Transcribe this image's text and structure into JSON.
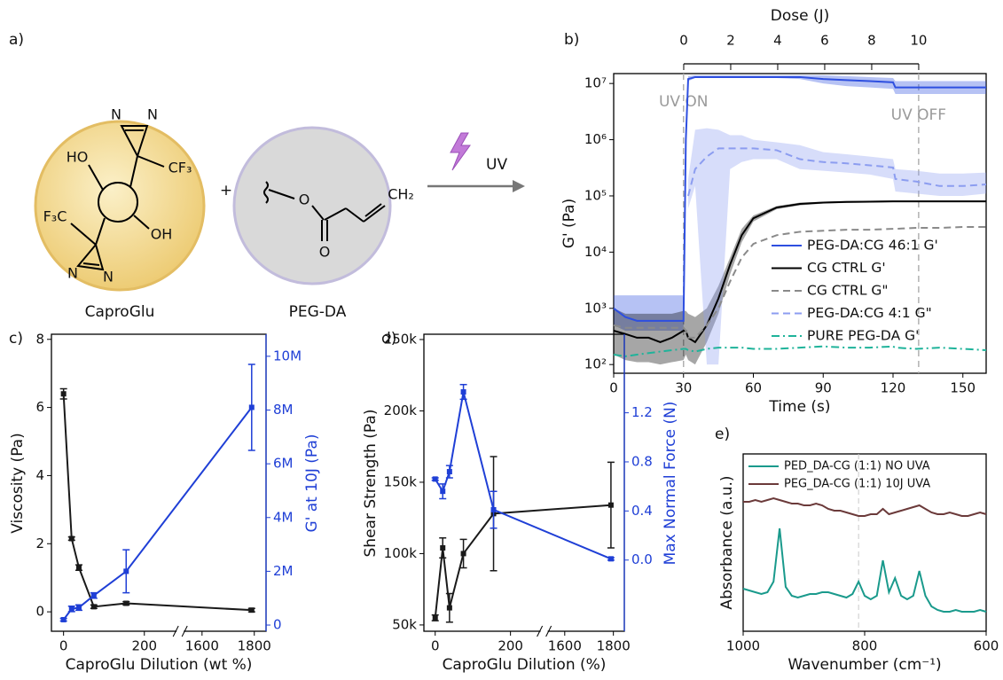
{
  "panel_a": {
    "label": "a)",
    "plus": "+",
    "uv": "UV",
    "compounds": [
      "CaproGlu",
      "PEG-DA"
    ],
    "atoms": [
      "HO",
      "OH",
      "CF₃",
      "F₃C",
      "N",
      "N",
      "N",
      "N",
      "O",
      "O",
      "CH₂"
    ]
  },
  "chart_data": [
    {
      "type": "line",
      "label": "b)",
      "xlabel": "Time (s)",
      "ylabel": "G' (Pa)",
      "x2label": "Dose (J)",
      "xlim": [
        0,
        160
      ],
      "xticks": [
        0,
        30,
        60,
        90,
        120,
        150
      ],
      "x2lim": [
        -2.98,
        12.87
      ],
      "x2ticks": [
        0,
        2,
        4,
        6,
        8,
        10
      ],
      "yscale": "log",
      "ylim": [
        70,
        15000000
      ],
      "yticks": [
        {
          "value": 100,
          "label": "10²"
        },
        {
          "value": 1000,
          "label": "10³"
        },
        {
          "value": 10000,
          "label": "10⁴"
        },
        {
          "value": 100000,
          "label": "10⁵"
        },
        {
          "value": 1000000,
          "label": "10⁶"
        },
        {
          "value": 10000000,
          "label": "10⁷"
        }
      ],
      "legend": "lower right",
      "annotations": [
        {
          "text": "UV ON",
          "x": 30
        },
        {
          "text": "UV OFF",
          "x": 131
        }
      ],
      "x": [
        0,
        5,
        10,
        15,
        20,
        25,
        30,
        31,
        32,
        35,
        40,
        45,
        50,
        55,
        60,
        70,
        80,
        90,
        100,
        110,
        120,
        121,
        130,
        140,
        150,
        160
      ],
      "series": [
        {
          "name": "PEG-DA:CG 46:1 G'",
          "color": "#2e4fe0",
          "style": "solid",
          "values": [
            1000,
            700,
            600,
            600,
            600,
            600,
            600,
            1000000,
            12000000,
            13000000,
            13000000,
            13000000,
            13000000,
            13000000,
            13000000,
            13000000,
            13000000,
            12000000,
            11500000,
            11000000,
            10500000,
            8500000,
            8500000,
            8500000,
            8500000,
            8500000
          ],
          "band_low": [
            500,
            400,
            400,
            400,
            400,
            400,
            400,
            600000,
            11000000,
            12500000,
            12500000,
            12500000,
            12500000,
            12500000,
            12500000,
            12500000,
            12000000,
            10000000,
            9000000,
            8500000,
            8000000,
            6500000,
            6500000,
            6500000,
            6500000,
            6500000
          ],
          "band_high": [
            1700,
            1700,
            1700,
            1700,
            1700,
            1700,
            1700,
            1500000,
            13500000,
            14000000,
            14000000,
            14000000,
            14000000,
            14000000,
            14000000,
            14000000,
            14000000,
            14000000,
            13500000,
            13000000,
            12500000,
            11000000,
            11000000,
            11000000,
            11000000,
            11000000
          ]
        },
        {
          "name": "CG CTRL G'",
          "color": "#000000",
          "style": "solid",
          "values": [
            400,
            350,
            300,
            300,
            250,
            300,
            400,
            400,
            300,
            250,
            500,
            1500,
            6000,
            20000,
            40000,
            62000,
            72000,
            76000,
            78000,
            79000,
            80000,
            80000,
            80000,
            80000,
            80000,
            80000
          ],
          "band_low": [
            150,
            120,
            110,
            110,
            100,
            110,
            120,
            150,
            120,
            100,
            250,
            800,
            4000,
            15000,
            35000,
            58000,
            68000,
            73000,
            75000,
            76000,
            77000,
            77000,
            77000,
            77000,
            77000,
            77000
          ],
          "band_high": [
            1000,
            800,
            800,
            800,
            800,
            800,
            900,
            900,
            800,
            700,
            1000,
            2500,
            8000,
            26000,
            45000,
            66000,
            76000,
            79000,
            81000,
            82000,
            83000,
            83000,
            83000,
            83000,
            83000,
            83000
          ]
        },
        {
          "name": "CG CTRL G\"",
          "color": "#8a8a8a",
          "style": "dash",
          "values": [
            500,
            450,
            450,
            450,
            450,
            450,
            450,
            400,
            300,
            300,
            500,
            1000,
            3000,
            8000,
            14000,
            20000,
            23000,
            24000,
            25000,
            25000,
            26000,
            26000,
            27000,
            27000,
            28000,
            28000
          ]
        },
        {
          "name": "PEG-DA:CG 4:1 G\"",
          "color": "#8c9df0",
          "style": "dash",
          "values": [
            null,
            null,
            null,
            null,
            null,
            null,
            null,
            null,
            100000,
            300000,
            500000,
            700000,
            700000,
            700000,
            700000,
            650000,
            450000,
            400000,
            380000,
            350000,
            320000,
            200000,
            180000,
            150000,
            150000,
            160000
          ],
          "band_low": [
            null,
            null,
            null,
            null,
            null,
            null,
            null,
            null,
            60000,
            150000,
            100,
            100,
            300000,
            400000,
            450000,
            450000,
            300000,
            280000,
            260000,
            240000,
            200000,
            120000,
            110000,
            100000,
            100000,
            110000
          ],
          "band_high": [
            null,
            null,
            null,
            null,
            null,
            null,
            null,
            null,
            200000,
            1500000,
            1600000,
            1500000,
            1200000,
            1200000,
            1000000,
            900000,
            800000,
            600000,
            550000,
            500000,
            450000,
            300000,
            280000,
            250000,
            250000,
            260000
          ]
        },
        {
          "name": "PURE PEG-DA G'",
          "color": "#1fb39a",
          "style": "dashdot",
          "values": [
            150,
            140,
            150,
            160,
            170,
            180,
            190,
            190,
            180,
            170,
            190,
            200,
            200,
            200,
            190,
            190,
            200,
            210,
            200,
            200,
            210,
            200,
            190,
            200,
            190,
            180
          ]
        }
      ]
    },
    {
      "type": "line",
      "label": "c)",
      "xlabel": "CaproGlu Dilution (wt %)",
      "ylabel": "Viscosity (Pa)",
      "y2label": "G' at 10J (Pa)",
      "xlim": [
        -30,
        1845
      ],
      "xbreak": [
        280,
        1530
      ],
      "xticks": [
        0,
        200,
        1600,
        1800
      ],
      "ylim": [
        -0.57,
        8.15
      ],
      "yticks": [
        0,
        2,
        4,
        6,
        8
      ],
      "y2lim": [
        -230000,
        10820000
      ],
      "y2ticks": [
        0,
        {
          "value": 2000000,
          "label": "2M"
        },
        {
          "value": 4000000,
          "label": "4M"
        },
        {
          "value": 6000000,
          "label": "6M"
        },
        {
          "value": 8000000,
          "label": "8M"
        },
        {
          "value": 10000000,
          "label": "10M"
        }
      ],
      "x": [
        0,
        20,
        38,
        75,
        155,
        1790
      ],
      "series": [
        {
          "color": "#1a1a1a",
          "style": "solid",
          "marker": "square",
          "values": [
            6.4,
            2.15,
            1.3,
            0.15,
            0.25,
            0.05
          ],
          "errors": [
            0.15,
            0.05,
            0.08,
            0.05,
            0.05,
            0.05
          ]
        },
        {
          "color": "#1f3fd6",
          "style": "solid",
          "marker": "square",
          "axis": "y2",
          "values": [
            200000,
            600000,
            650000,
            1100000,
            2000000,
            8100000
          ],
          "errors": [
            50000,
            100000,
            100000,
            100000,
            800000,
            1600000
          ]
        }
      ]
    },
    {
      "type": "line",
      "label": "d)",
      "xlabel": "CaproGlu Dilution (%)",
      "ylabel": "Shear Strength (Pa)",
      "y2label": "Max Normal Force (N)",
      "xlim": [
        -30,
        1845
      ],
      "xbreak": [
        280,
        1530
      ],
      "xticks": [
        0,
        200,
        1600,
        1800
      ],
      "ylim": [
        45600,
        253700
      ],
      "yticks": [
        {
          "value": 50000,
          "label": "50k"
        },
        {
          "value": 100000,
          "label": "100k"
        },
        {
          "value": 150000,
          "label": "150k"
        },
        {
          "value": 200000,
          "label": "200k"
        },
        {
          "value": 250000,
          "label": "250k"
        }
      ],
      "y2lim": [
        -0.58,
        1.84
      ],
      "y2ticks": [
        {
          "value": 0,
          "label": "0.0"
        },
        0.4,
        0.8,
        1.2
      ],
      "x": [
        0,
        20,
        38,
        75,
        155,
        1790
      ],
      "series": [
        {
          "color": "#1a1a1a",
          "style": "solid",
          "marker": "square",
          "values": [
            55000,
            104000,
            62000,
            100000,
            128000,
            134000
          ],
          "errors": [
            2000,
            7000,
            10000,
            10000,
            40000,
            30000
          ]
        },
        {
          "color": "#1f3fd6",
          "style": "solid",
          "marker": "square",
          "axis": "y2",
          "values": [
            0.66,
            0.56,
            0.72,
            1.37,
            0.41,
            0.01
          ],
          "errors": [
            0.01,
            0.06,
            0.05,
            0.06,
            0.15,
            0.01
          ]
        }
      ]
    },
    {
      "type": "line",
      "label": "e)",
      "xlabel": "Wavenumber (cm⁻¹)",
      "ylabel": "Absorbance (a.u.)",
      "xlim": [
        1000,
        600
      ],
      "xticks": [
        1000,
        800,
        600
      ],
      "ylim": [
        0,
        1
      ],
      "vlines": [
        810
      ],
      "legend": "upper left",
      "x": [
        1000,
        990,
        980,
        970,
        960,
        950,
        940,
        930,
        920,
        910,
        900,
        890,
        880,
        870,
        860,
        850,
        840,
        830,
        820,
        810,
        800,
        790,
        780,
        770,
        760,
        750,
        740,
        730,
        720,
        710,
        700,
        690,
        680,
        670,
        660,
        650,
        640,
        630,
        620,
        610,
        600
      ],
      "series": [
        {
          "name": "PED_DA-CG (1:1) NO UVA",
          "color": "#1a9a8c",
          "style": "solid",
          "values": [
            0.24,
            0.23,
            0.22,
            0.21,
            0.22,
            0.28,
            0.58,
            0.25,
            0.2,
            0.19,
            0.2,
            0.21,
            0.21,
            0.22,
            0.22,
            0.21,
            0.2,
            0.19,
            0.21,
            0.28,
            0.2,
            0.18,
            0.2,
            0.4,
            0.22,
            0.3,
            0.2,
            0.18,
            0.2,
            0.34,
            0.2,
            0.14,
            0.12,
            0.11,
            0.11,
            0.12,
            0.11,
            0.11,
            0.11,
            0.12,
            0.11
          ]
        },
        {
          "name": "PEG_DA-CG (1:1) 10J UVA",
          "color": "#6b3a3a",
          "style": "solid",
          "values": [
            0.73,
            0.73,
            0.74,
            0.73,
            0.74,
            0.75,
            0.74,
            0.73,
            0.72,
            0.72,
            0.71,
            0.71,
            0.72,
            0.71,
            0.69,
            0.68,
            0.68,
            0.67,
            0.66,
            0.65,
            0.65,
            0.66,
            0.66,
            0.69,
            0.66,
            0.67,
            0.68,
            0.69,
            0.7,
            0.71,
            0.69,
            0.67,
            0.66,
            0.66,
            0.67,
            0.66,
            0.65,
            0.65,
            0.66,
            0.67,
            0.66
          ]
        }
      ]
    }
  ]
}
